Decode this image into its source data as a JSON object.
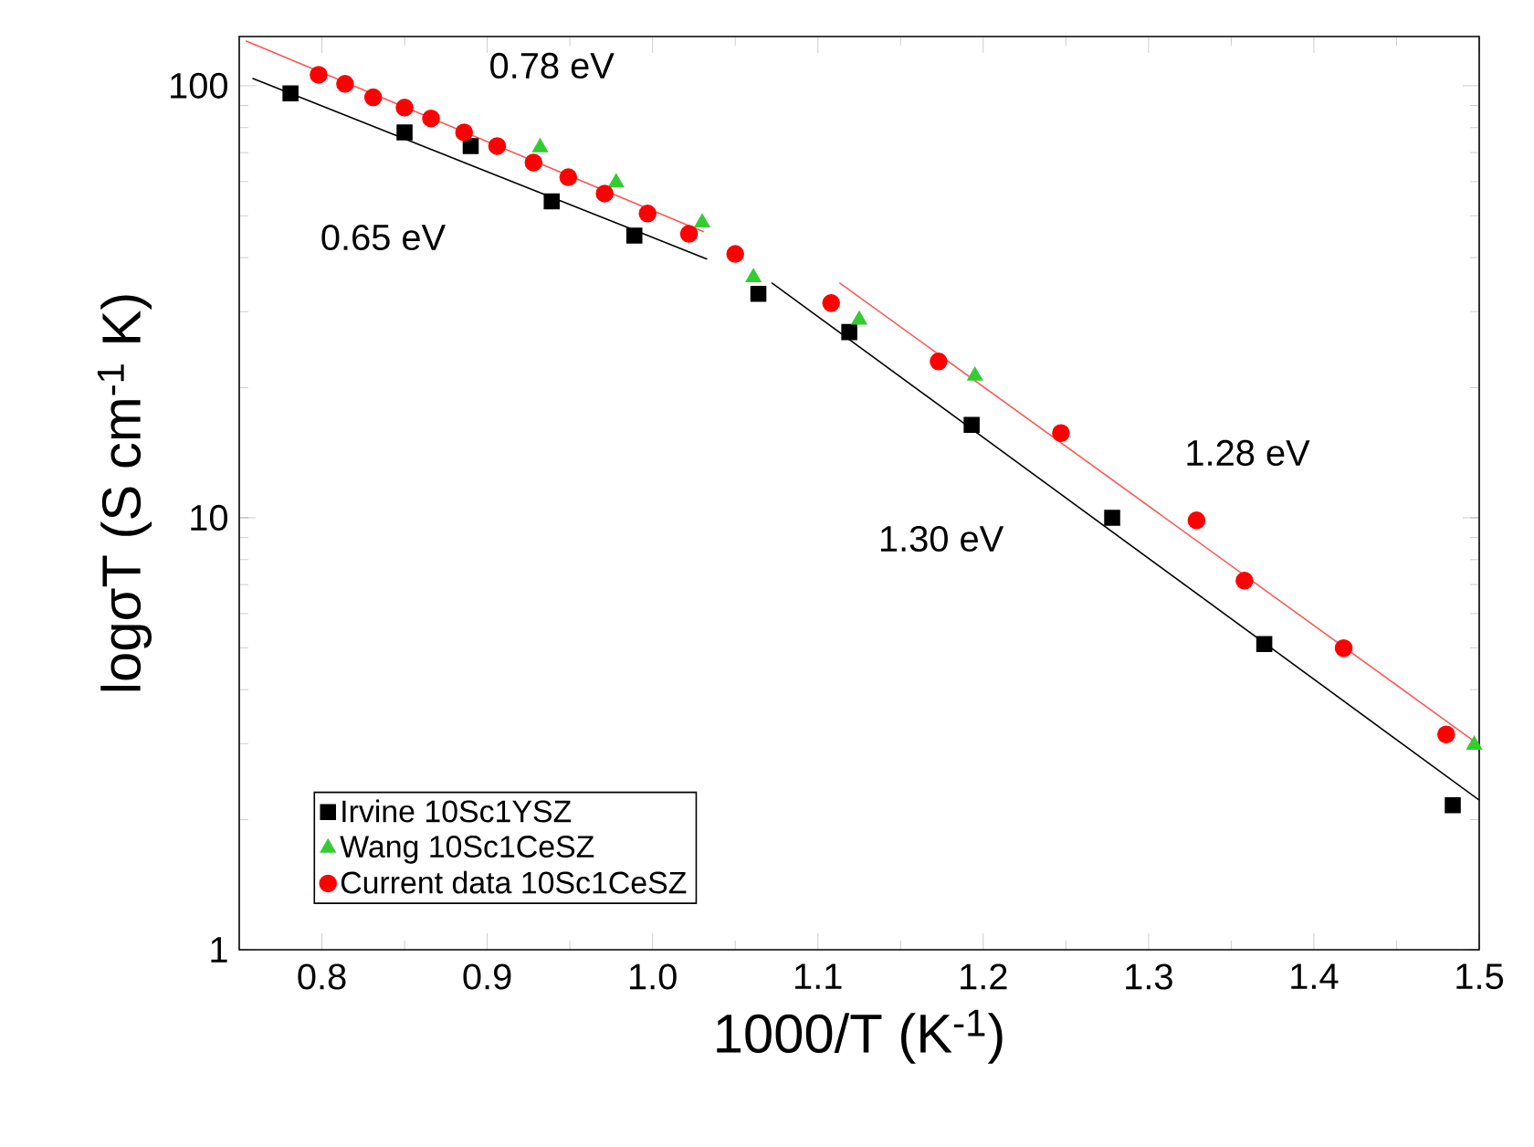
{
  "chart_data": {
    "type": "scatter",
    "xlabel": "1000/T (K$^{-1}$)",
    "ylabel": "logσT (S cm$^{-1}$ K)",
    "log": "y",
    "xlim": [
      0.75,
      1.5
    ],
    "xticks": [
      0.8,
      {
        "value": 0.9,
        "label": "0.9"
      },
      {
        "value": 1.0,
        "label": "1.0"
      },
      1.1,
      1.2,
      1.3,
      1.4,
      {
        "value": 1.5,
        "label": "1.5"
      }
    ],
    "ylim": [
      1,
      130
    ],
    "yticks": [
      1,
      10,
      100
    ],
    "legend": "bottom left",
    "grid": false,
    "series": [
      {
        "name": "Irvine 10Sc1YSZ",
        "color": "#000000",
        "marker": "square",
        "x": [
          0.781,
          0.85,
          0.89,
          0.939,
          0.989,
          1.064,
          1.119,
          1.193,
          1.278,
          1.37,
          1.484
        ],
        "values": [
          96,
          78,
          72.5,
          54,
          45,
          33,
          26.9,
          16.4,
          10,
          5.1,
          2.16
        ]
      },
      {
        "name": "Wang 10Sc1CeSZ",
        "color": "#33cc33",
        "marker": "triangle",
        "x": [
          0.932,
          0.978,
          1.03,
          1.061,
          1.125,
          1.195,
          1.497
        ],
        "values": [
          72,
          59.7,
          48.2,
          36,
          28.7,
          21.3,
          2.98
        ]
      },
      {
        "name": "Current data 10Sc1CeSZ",
        "color": "#ff0000",
        "marker": "circle",
        "x": [
          0.798,
          0.814,
          0.831,
          0.85,
          0.866,
          0.886,
          0.906,
          0.928,
          0.949,
          0.971,
          0.997,
          1.022,
          1.05,
          1.108,
          1.173,
          1.247,
          1.329,
          1.358,
          1.418,
          1.48
        ],
        "values": [
          106,
          101,
          94,
          89,
          84,
          78,
          72.5,
          66.4,
          61.4,
          56.3,
          50.6,
          45.4,
          40.8,
          31.4,
          23,
          15.7,
          9.86,
          7.15,
          4.99,
          3.15
        ]
      },
      {
        "type": "line",
        "color": "#000000",
        "marker": "none",
        "x": [
          0.758,
          1.033
        ],
        "values": [
          104,
          39.7
        ]
      },
      {
        "type": "line",
        "color": "#000000",
        "marker": "none",
        "x": [
          1.072,
          1.5
        ],
        "values": [
          35,
          2.22
        ]
      },
      {
        "type": "line",
        "color": "#ff5555",
        "marker": "none",
        "x": [
          0.754,
          1.031
        ],
        "values": [
          127,
          45.9
        ]
      },
      {
        "type": "line",
        "color": "#ff5555",
        "marker": "none",
        "x": [
          1.113,
          1.5
        ],
        "values": [
          35,
          2.98
        ]
      }
    ],
    "annotations": [
      "0.78 eV",
      "0.65 eV",
      "1.30 eV",
      "1.28 eV"
    ]
  }
}
